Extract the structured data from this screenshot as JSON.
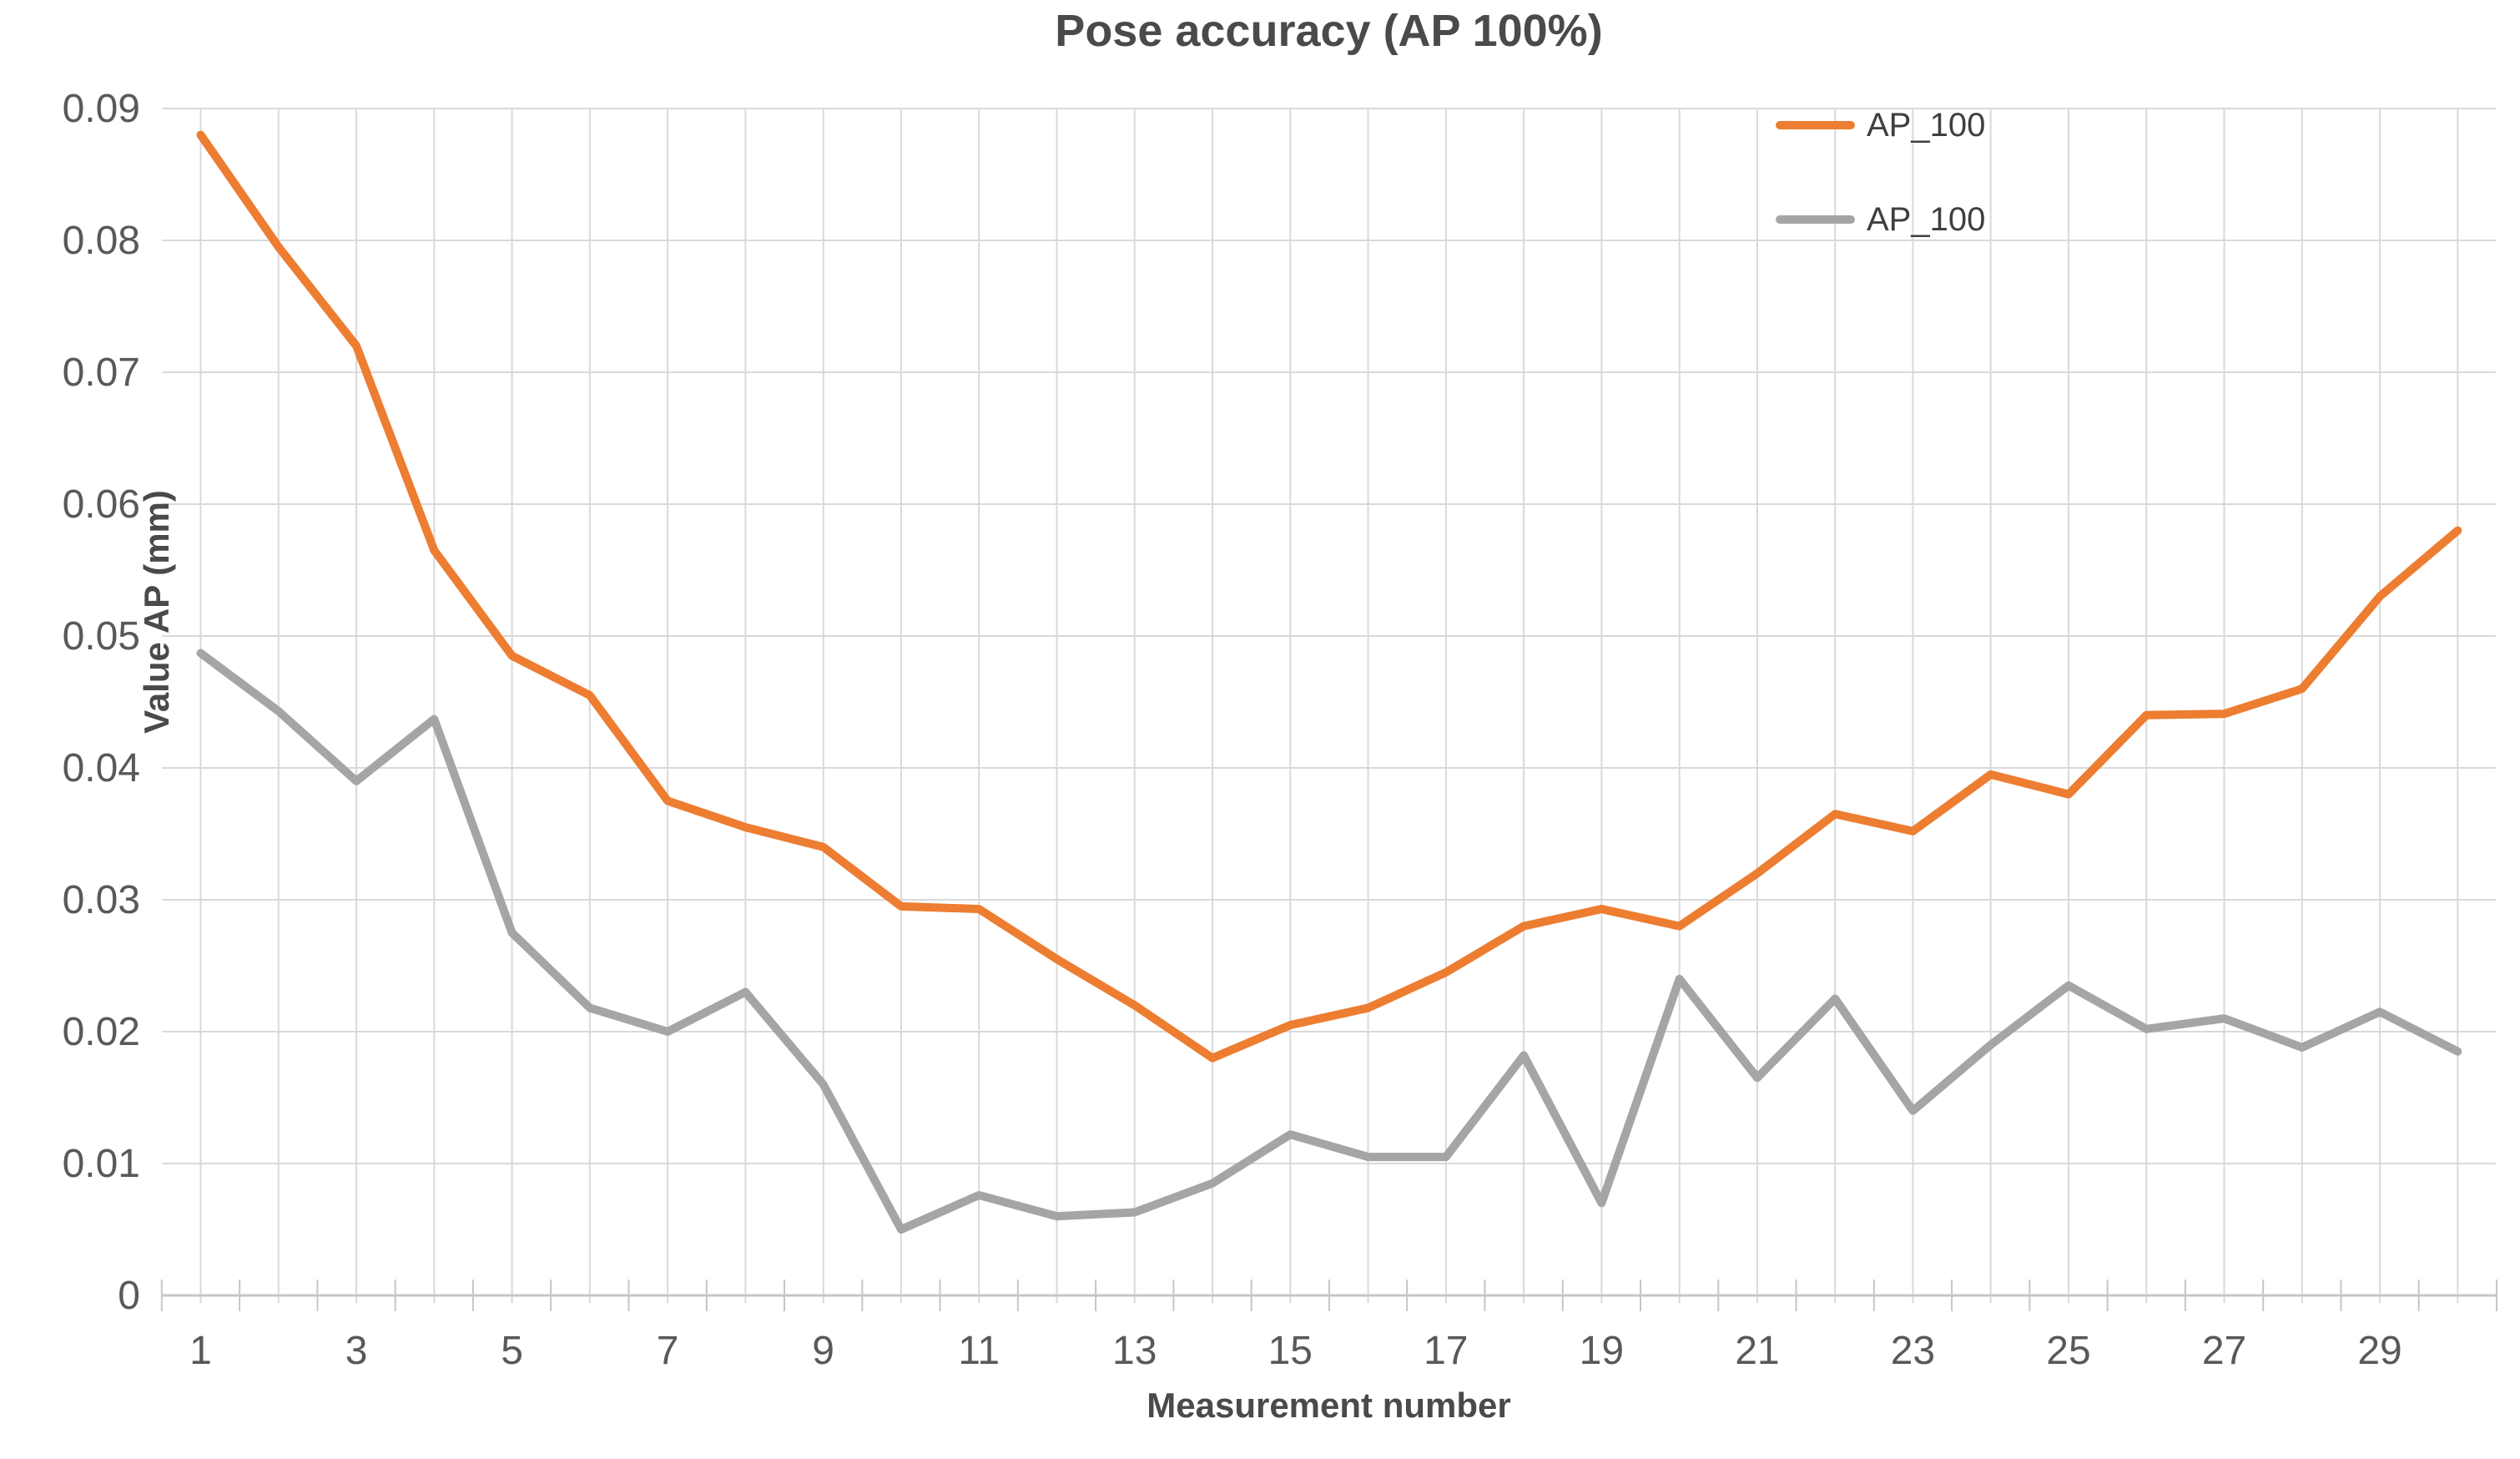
{
  "chart_data": {
    "type": "line",
    "title": "Pose accuracy (AP 100%)",
    "xlabel": "Measurement number",
    "ylabel": "Value AP (mm)",
    "x": [
      1,
      2,
      3,
      4,
      5,
      6,
      7,
      8,
      9,
      10,
      11,
      12,
      13,
      14,
      15,
      16,
      17,
      18,
      19,
      20,
      21,
      22,
      23,
      24,
      25,
      26,
      27,
      28,
      29,
      30
    ],
    "x_tick_labels": [
      "1",
      "3",
      "5",
      "7",
      "9",
      "11",
      "13",
      "15",
      "17",
      "19",
      "21",
      "23",
      "25",
      "27",
      "29"
    ],
    "y_tick_values": [
      0,
      0.01,
      0.02,
      0.03,
      0.04,
      0.05,
      0.06,
      0.07,
      0.08,
      0.09
    ],
    "y_tick_labels": [
      "0",
      "0.01",
      "0.02",
      "0.03",
      "0.04",
      "0.05",
      "0.06",
      "0.07",
      "0.08",
      "0.09"
    ],
    "ylim": [
      0,
      0.09
    ],
    "grid": true,
    "legend": {
      "position": "top-right-inside",
      "entries": [
        {
          "label": "AP_100",
          "color": "#ED7D31"
        },
        {
          "label": "AP_100",
          "color": "#A5A5A5"
        }
      ]
    },
    "series": [
      {
        "name": "AP_100",
        "color": "#ED7D31",
        "values": [
          0.088,
          0.0795,
          0.072,
          0.0565,
          0.0485,
          0.0455,
          0.0375,
          0.0355,
          0.034,
          0.0295,
          0.0293,
          0.0255,
          0.022,
          0.018,
          0.0205,
          0.0218,
          0.0245,
          0.028,
          0.0293,
          0.028,
          0.032,
          0.0365,
          0.0352,
          0.0395,
          0.038,
          0.044,
          0.0441,
          0.046,
          0.053,
          0.058
        ]
      },
      {
        "name": "AP_100",
        "color": "#A5A5A5",
        "values": [
          0.0487,
          0.0443,
          0.039,
          0.0437,
          0.0275,
          0.0218,
          0.02,
          0.023,
          0.016,
          0.005,
          0.0076,
          0.006,
          0.0063,
          0.0085,
          0.0122,
          0.0105,
          0.0105,
          0.0182,
          0.007,
          0.024,
          0.0165,
          0.0225,
          0.014,
          0.019,
          0.0235,
          0.0202,
          0.021,
          0.0188,
          0.0215,
          0.0185
        ]
      }
    ]
  },
  "style_colors": {
    "gridline": "#D9D9D9",
    "axis_line": "#C6C6C6",
    "tick_mark": "#C6C6C6",
    "tick_label": "#595959"
  }
}
